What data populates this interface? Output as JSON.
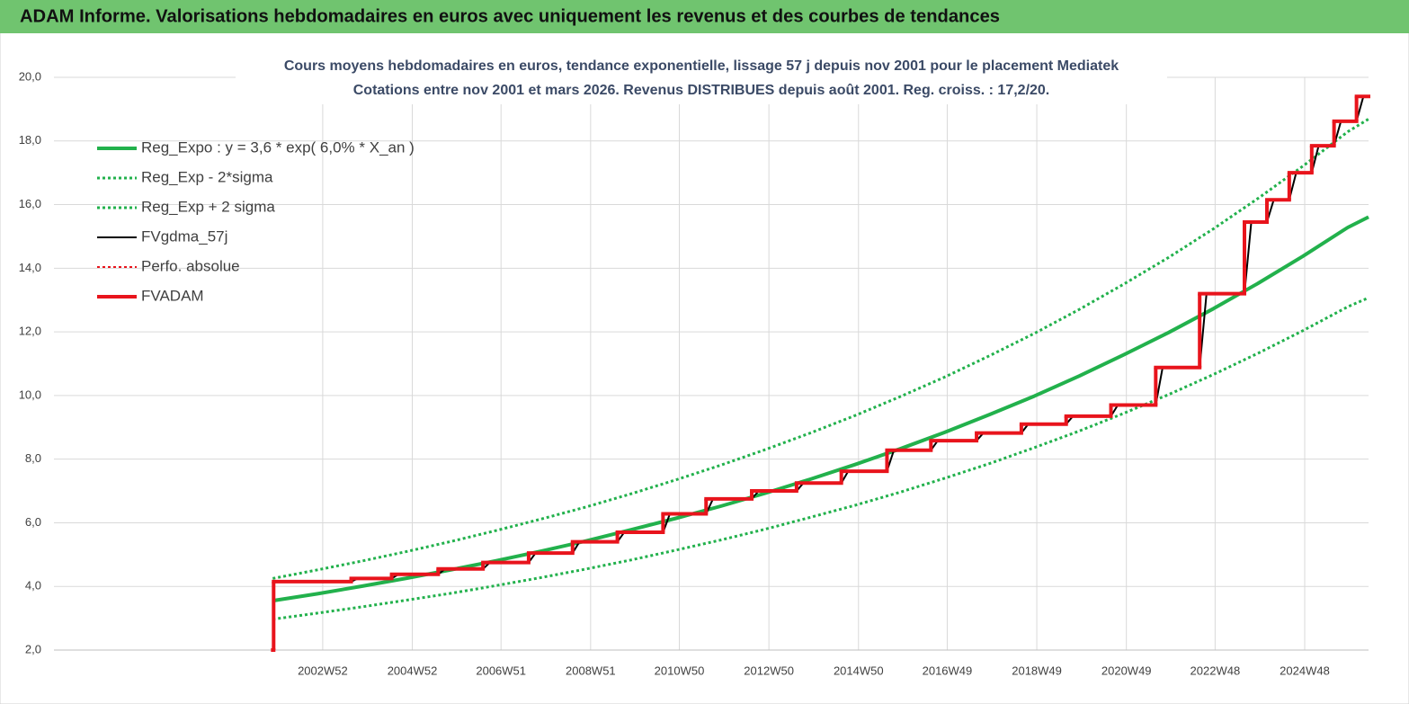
{
  "header": {
    "title": "ADAM Informe. Valorisations hebdomadaires en euros avec uniquement les revenus et des courbes de tendances"
  },
  "chart_data": {
    "type": "line",
    "title": "Cours moyens hebdomadaires en euros, tendance exponentielle, lissage 57 j depuis nov 2001 pour le placement Mediatek",
    "subtitle": "Cotations entre nov 2001 et mars 2026. Revenus DISTRIBUES depuis août 2001. Reg. croiss. : 17,2/20.",
    "legend": "upper left",
    "grid": true,
    "xlim": [
      "1996W52",
      "2026W18"
    ],
    "xticks": [
      "2002W52",
      "2004W52",
      "2006W51",
      "2008W51",
      "2010W50",
      "2012W50",
      "2014W50",
      "2016W49",
      "2018W49",
      "2020W49",
      "2022W48",
      "2024W48"
    ],
    "ylim": [
      2,
      20
    ],
    "yticks": [
      {
        "value": 2,
        "label": "2,0"
      },
      {
        "value": 4,
        "label": "4,0"
      },
      {
        "value": 6,
        "label": "6,0"
      },
      {
        "value": 8,
        "label": "8,0"
      },
      {
        "value": 10,
        "label": "10,0"
      },
      {
        "value": 12,
        "label": "12,0"
      },
      {
        "value": 14,
        "label": "14,0"
      },
      {
        "value": 16,
        "label": "16,0"
      },
      {
        "value": 18,
        "label": "18,0"
      },
      {
        "value": 20,
        "label": "20,0"
      }
    ],
    "x": [
      "2001W46",
      "2002W46",
      "2003W46",
      "2004W46",
      "2005W46",
      "2006W46",
      "2007W46",
      "2008W46",
      "2009W46",
      "2010W46",
      "2011W46",
      "2012W46",
      "2013W46",
      "2014W46",
      "2015W46",
      "2016W46",
      "2017W46",
      "2018W46",
      "2019W46",
      "2020W46",
      "2021W46",
      "2022W46",
      "2023W46",
      "2024W46",
      "2025W46",
      "2026W18"
    ],
    "series": [
      {
        "name": "Reg_Expo : y = 3,6 * exp( 6,0% *  X_an )",
        "color": "#22b14c",
        "style": "solid",
        "width": 4,
        "values": [
          3.55,
          3.77,
          4.01,
          4.26,
          4.53,
          4.81,
          5.11,
          5.43,
          5.78,
          6.14,
          6.52,
          6.93,
          7.37,
          7.83,
          8.32,
          8.84,
          9.4,
          9.98,
          10.61,
          11.28,
          11.98,
          12.73,
          13.53,
          14.38,
          15.28,
          15.61
        ]
      },
      {
        "name": "Reg_Exp - 2*sigma",
        "color": "#22b14c",
        "style": "dotted",
        "width": 3,
        "values": [
          2.97,
          3.16,
          3.36,
          3.57,
          3.79,
          4.03,
          4.28,
          4.55,
          4.83,
          5.14,
          5.46,
          5.8,
          6.17,
          6.55,
          6.96,
          7.4,
          7.86,
          8.36,
          8.88,
          9.44,
          10.03,
          10.66,
          11.33,
          12.04,
          12.79,
          13.07
        ]
      },
      {
        "name": "Reg_Exp + 2 sigma",
        "color": "#22b14c",
        "style": "dotted",
        "width": 3,
        "values": [
          4.25,
          4.52,
          4.8,
          5.1,
          5.42,
          5.76,
          6.12,
          6.5,
          6.91,
          7.35,
          7.81,
          8.3,
          8.82,
          9.37,
          9.96,
          10.58,
          11.25,
          11.95,
          12.7,
          13.5,
          14.34,
          15.24,
          16.2,
          17.21,
          18.29,
          18.69
        ]
      },
      {
        "name": "FVgdma_57j",
        "color": "#000000",
        "style": "solid",
        "width": 2,
        "x": [
          "2001W47",
          "2003W33",
          "2003W41",
          "2004W28",
          "2004W36",
          "2005W30",
          "2005W38",
          "2006W30",
          "2006W38",
          "2007W31",
          "2007W39",
          "2008W30",
          "2008W38",
          "2009W30",
          "2009W38",
          "2010W31",
          "2010W39",
          "2011W29",
          "2011W37",
          "2012W30",
          "2012W38",
          "2013W30",
          "2013W38",
          "2014W30",
          "2014W38",
          "2015W31",
          "2015W39",
          "2016W30",
          "2016W38",
          "2017W31",
          "2017W39",
          "2018W31",
          "2018W39",
          "2019W31",
          "2019W39",
          "2020W31",
          "2020W39",
          "2021W31",
          "2021W39",
          "2022W30",
          "2022W38",
          "2023W30",
          "2023W38",
          "2024W04",
          "2024W12",
          "2024W30",
          "2024W38",
          "2025W04",
          "2025W12",
          "2025W30",
          "2025W38",
          "2026W04",
          "2026W12",
          "2026W18"
        ],
        "values": [
          4.15,
          4.15,
          4.25,
          4.25,
          4.38,
          4.38,
          4.55,
          4.55,
          4.75,
          4.75,
          5.05,
          5.05,
          5.4,
          5.4,
          5.7,
          5.7,
          6.28,
          6.28,
          6.75,
          6.75,
          7.0,
          7.0,
          7.25,
          7.25,
          7.62,
          7.62,
          8.28,
          8.28,
          8.58,
          8.58,
          8.82,
          8.82,
          9.1,
          9.1,
          9.35,
          9.35,
          9.7,
          9.7,
          10.88,
          10.88,
          13.2,
          13.2,
          15.45,
          15.45,
          16.15,
          16.15,
          17.0,
          17.0,
          17.85,
          17.85,
          18.62,
          18.62,
          19.4,
          19.4
        ]
      },
      {
        "name": "Perfo. absolue",
        "color": "#e8141c",
        "style": "dotted",
        "width": 2
      },
      {
        "name": "FVADAM",
        "color": "#e8141c",
        "style": "solid",
        "width": 4,
        "step": true,
        "x": [
          "2001W46",
          "2001W47",
          "2003W33",
          "2004W28",
          "2005W30",
          "2006W30",
          "2007W31",
          "2008W30",
          "2009W30",
          "2010W31",
          "2011W29",
          "2012W30",
          "2013W30",
          "2014W30",
          "2015W31",
          "2016W30",
          "2017W31",
          "2018W31",
          "2019W31",
          "2020W31",
          "2021W31",
          "2022W30",
          "2023W30",
          "2024W04",
          "2024W30",
          "2025W04",
          "2025W30",
          "2026W04"
        ],
        "values": [
          2.0,
          4.15,
          4.25,
          4.38,
          4.55,
          4.75,
          5.05,
          5.4,
          5.7,
          6.28,
          6.75,
          7.0,
          7.25,
          7.62,
          8.28,
          8.58,
          8.82,
          9.1,
          9.35,
          9.7,
          10.88,
          13.2,
          15.45,
          16.15,
          17.0,
          17.85,
          18.62,
          19.4
        ]
      }
    ]
  }
}
